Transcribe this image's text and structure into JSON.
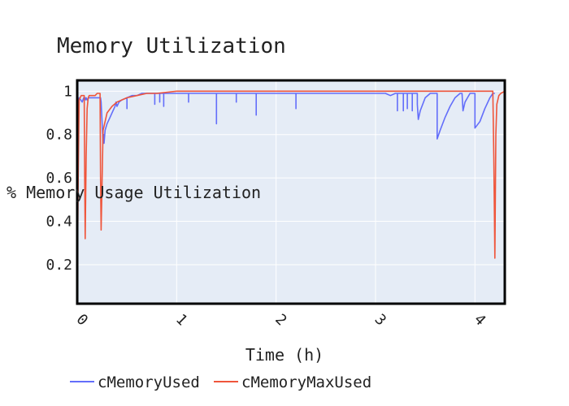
{
  "chart_data": {
    "type": "line",
    "title": "Memory Utilization",
    "xlabel": "Time (h)",
    "ylabel": "% Memory Usage Utilization",
    "xlim": [
      0,
      4.3
    ],
    "ylim": [
      0.02,
      1.05
    ],
    "x_ticks": [
      0,
      1,
      2,
      3,
      4
    ],
    "y_ticks": [
      0.2,
      0.4,
      0.6,
      0.8,
      1
    ],
    "grid": true,
    "legend_position": "bottom",
    "plot_background": "#e5ecf6",
    "series": [
      {
        "name": "cMemoryUsed",
        "color": "#636efa",
        "x": [
          0.0,
          0.01,
          0.02,
          0.035,
          0.05,
          0.065,
          0.07,
          0.08,
          0.085,
          0.09,
          0.1,
          0.115,
          0.12,
          0.14,
          0.17,
          0.2,
          0.225,
          0.235,
          0.24,
          0.26,
          0.265,
          0.27,
          0.28,
          0.3,
          0.33,
          0.36,
          0.38,
          0.39,
          0.4,
          0.42,
          0.45,
          0.5,
          0.5,
          0.5,
          0.55,
          0.6,
          0.65,
          0.7,
          0.75,
          0.78,
          0.78,
          0.78,
          0.8,
          0.83,
          0.83,
          0.83,
          0.85,
          0.87,
          0.87,
          0.87,
          0.9,
          0.95,
          1.0,
          1.05,
          1.1,
          1.12,
          1.12,
          1.12,
          1.15,
          1.2,
          1.25,
          1.3,
          1.35,
          1.4,
          1.4,
          1.4,
          1.45,
          1.5,
          1.55,
          1.6,
          1.6,
          1.6,
          1.65,
          1.7,
          1.75,
          1.8,
          1.8,
          1.8,
          1.85,
          1.9,
          1.95,
          2.0,
          2.05,
          2.1,
          2.15,
          2.2,
          2.2,
          2.2,
          2.25,
          2.3,
          2.4,
          2.5,
          2.6,
          2.7,
          2.8,
          2.9,
          3.0,
          3.05,
          3.1,
          3.15,
          3.2,
          3.22,
          3.22,
          3.22,
          3.25,
          3.28,
          3.28,
          3.28,
          3.3,
          3.32,
          3.32,
          3.32,
          3.35,
          3.37,
          3.37,
          3.37,
          3.4,
          3.42,
          3.42,
          3.43,
          3.45,
          3.5,
          3.55,
          3.6,
          3.62,
          3.62,
          3.65,
          3.7,
          3.75,
          3.8,
          3.85,
          3.87,
          3.87,
          3.88,
          3.9,
          3.95,
          4.0,
          4.0,
          4.05,
          4.1,
          4.15,
          4.18,
          4.2,
          4.2
        ],
        "y": [
          0.08,
          0.95,
          0.97,
          0.96,
          0.95,
          0.97,
          0.96,
          0.97,
          0.96,
          0.97,
          0.96,
          0.97,
          0.97,
          0.97,
          0.97,
          0.97,
          0.97,
          0.97,
          0.95,
          0.76,
          0.8,
          0.76,
          0.82,
          0.85,
          0.88,
          0.91,
          0.93,
          0.95,
          0.93,
          0.95,
          0.96,
          0.97,
          0.92,
          0.97,
          0.98,
          0.98,
          0.99,
          0.99,
          0.99,
          0.99,
          0.94,
          0.99,
          0.99,
          0.99,
          0.95,
          0.99,
          0.99,
          0.99,
          0.93,
          0.99,
          0.99,
          0.99,
          0.99,
          0.99,
          0.99,
          0.99,
          0.95,
          0.99,
          0.99,
          0.99,
          0.99,
          0.99,
          0.99,
          0.99,
          0.85,
          0.99,
          0.99,
          0.99,
          0.99,
          0.99,
          0.95,
          0.99,
          0.99,
          0.99,
          0.99,
          0.99,
          0.89,
          0.99,
          0.99,
          0.99,
          0.99,
          0.99,
          0.99,
          0.99,
          0.99,
          0.99,
          0.92,
          0.99,
          0.99,
          0.99,
          0.99,
          0.99,
          0.99,
          0.99,
          0.99,
          0.99,
          0.99,
          0.99,
          0.99,
          0.98,
          0.99,
          0.99,
          0.91,
          0.99,
          0.99,
          0.99,
          0.91,
          0.99,
          0.99,
          0.99,
          0.92,
          0.99,
          0.99,
          0.99,
          0.91,
          0.99,
          0.99,
          0.99,
          0.94,
          0.87,
          0.91,
          0.97,
          0.99,
          0.99,
          0.99,
          0.78,
          0.82,
          0.88,
          0.93,
          0.97,
          0.99,
          0.99,
          0.99,
          0.91,
          0.95,
          0.99,
          0.99,
          0.83,
          0.86,
          0.92,
          0.97,
          0.99,
          0.99,
          0.99
        ]
      },
      {
        "name": "cMemoryMaxUsed",
        "color": "#ef553b",
        "x": [
          0.0,
          0.01,
          0.02,
          0.04,
          0.06,
          0.07,
          0.075,
          0.08,
          0.09,
          0.1,
          0.11,
          0.12,
          0.15,
          0.18,
          0.2,
          0.23,
          0.235,
          0.24,
          0.26,
          0.28,
          0.3,
          0.35,
          0.4,
          0.5,
          0.6,
          0.7,
          0.8,
          1.0,
          1.2,
          1.5,
          2.0,
          2.5,
          3.0,
          3.5,
          4.0,
          4.18,
          4.19,
          4.2,
          4.21,
          4.22,
          4.24,
          4.26,
          4.3
        ],
        "y": [
          0.05,
          0.6,
          0.96,
          0.98,
          0.98,
          0.98,
          0.6,
          0.32,
          0.7,
          0.92,
          0.97,
          0.98,
          0.98,
          0.98,
          0.99,
          0.99,
          0.6,
          0.36,
          0.82,
          0.86,
          0.9,
          0.93,
          0.95,
          0.97,
          0.98,
          0.99,
          0.99,
          1.0,
          1.0,
          1.0,
          1.0,
          1.0,
          1.0,
          1.0,
          1.0,
          1.0,
          0.7,
          0.23,
          0.8,
          0.94,
          0.98,
          0.99,
          1.0
        ]
      }
    ]
  }
}
